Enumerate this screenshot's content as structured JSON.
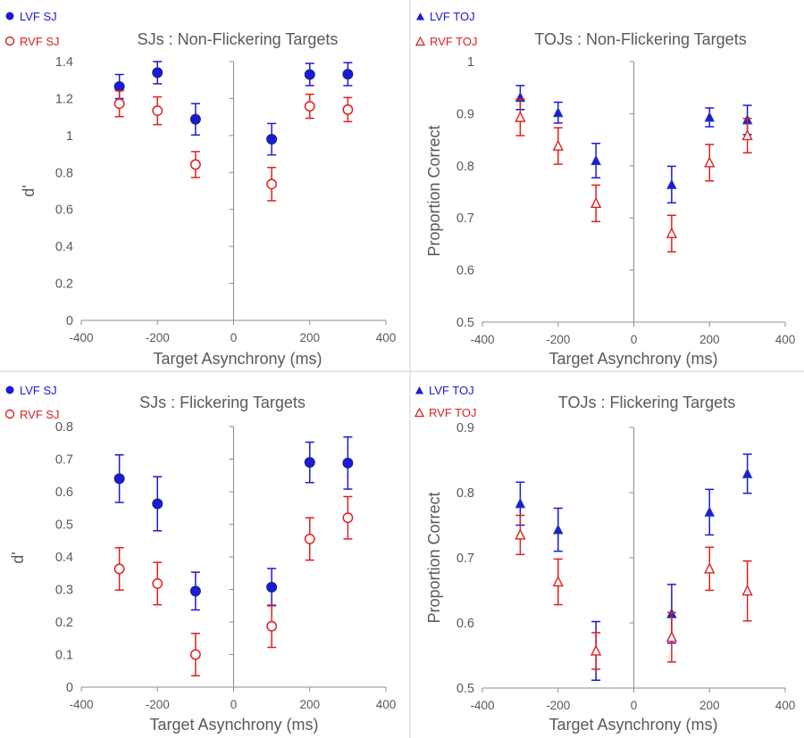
{
  "colors": {
    "lvf": "#1a1adb",
    "rvf": "#e02020",
    "axis": "#8c8c8c",
    "text": "#595959",
    "divider": "#d0d0d0"
  },
  "chart_data": [
    {
      "type": "scatter",
      "title": "SJs : Non-Flickering Targets",
      "xlabel": "Target Asynchrony (ms)",
      "ylabel": "d'",
      "xlim": [
        -400,
        400
      ],
      "ylim": [
        0,
        1.4
      ],
      "xticks": [
        "-400",
        "-200",
        "0",
        "200",
        "400"
      ],
      "yticks": [
        "0",
        "0.2",
        "0.4",
        "0.6",
        "0.8",
        "1",
        "1.2",
        "1.4"
      ],
      "legend_position": "top-left",
      "series": [
        {
          "name": "LVF SJ",
          "marker": "filled-circle",
          "x": [
            -300,
            -200,
            -100,
            100,
            200,
            300
          ],
          "y": [
            1.265,
            1.34,
            1.088,
            0.98,
            1.33,
            1.332
          ],
          "err": [
            0.065,
            0.06,
            0.085,
            0.085,
            0.06,
            0.062
          ]
        },
        {
          "name": "RVF SJ",
          "marker": "open-circle",
          "x": [
            -300,
            -200,
            -100,
            100,
            200,
            300
          ],
          "y": [
            1.172,
            1.134,
            0.843,
            0.737,
            1.158,
            1.14
          ],
          "err": [
            0.07,
            0.075,
            0.07,
            0.09,
            0.065,
            0.065
          ]
        }
      ]
    },
    {
      "type": "scatter",
      "title": "TOJs : Non-Flickering Targets",
      "xlabel": "Target Asynchrony (ms)",
      "ylabel": "Proportion Correct",
      "xlim": [
        -400,
        400
      ],
      "ylim": [
        0.5,
        1
      ],
      "xticks": [
        "-400",
        "-200",
        "0",
        "200",
        "400"
      ],
      "yticks": [
        "0.5",
        "0.6",
        "0.7",
        "0.8",
        "0.9",
        "1"
      ],
      "legend_position": "top-left",
      "series": [
        {
          "name": "LVF TOJ",
          "marker": "filled-triangle",
          "x": [
            -300,
            -200,
            -100,
            100,
            200,
            300
          ],
          "y": [
            0.931,
            0.902,
            0.81,
            0.764,
            0.893,
            0.888
          ],
          "err": [
            0.023,
            0.02,
            0.033,
            0.035,
            0.018,
            0.028
          ]
        },
        {
          "name": "RVF TOJ",
          "marker": "open-triangle",
          "x": [
            -300,
            -200,
            -100,
            100,
            200,
            300
          ],
          "y": [
            0.893,
            0.838,
            0.728,
            0.67,
            0.806,
            0.858
          ],
          "err": [
            0.035,
            0.035,
            0.035,
            0.035,
            0.035,
            0.033
          ]
        }
      ]
    },
    {
      "type": "scatter",
      "title": "SJs : Flickering Targets",
      "xlabel": "Target Asynchrony (ms)",
      "ylabel": "d'",
      "xlim": [
        -400,
        400
      ],
      "ylim": [
        0,
        0.8
      ],
      "xticks": [
        "-400",
        "-200",
        "0",
        "200",
        "400"
      ],
      "yticks": [
        "0",
        "0.1",
        "0.2",
        "0.3",
        "0.4",
        "0.5",
        "0.6",
        "0.7",
        "0.8"
      ],
      "legend_position": "top-left",
      "series": [
        {
          "name": "LVF SJ",
          "marker": "filled-circle",
          "x": [
            -300,
            -200,
            -100,
            100,
            200,
            300
          ],
          "y": [
            0.64,
            0.563,
            0.295,
            0.307,
            0.69,
            0.688
          ],
          "err": [
            0.073,
            0.083,
            0.058,
            0.057,
            0.062,
            0.08
          ]
        },
        {
          "name": "RVF SJ",
          "marker": "open-circle",
          "x": [
            -300,
            -200,
            -100,
            100,
            200,
            300
          ],
          "y": [
            0.363,
            0.318,
            0.1,
            0.187,
            0.455,
            0.52
          ],
          "err": [
            0.065,
            0.065,
            0.065,
            0.065,
            0.065,
            0.065
          ]
        }
      ]
    },
    {
      "type": "scatter",
      "title": "TOJs : Flickering Targets",
      "xlabel": "Target Asynchrony (ms)",
      "ylabel": "Proportion Correct",
      "xlim": [
        -400,
        400
      ],
      "ylim": [
        0.5,
        0.9
      ],
      "xticks": [
        "-400",
        "-200",
        "0",
        "200",
        "400"
      ],
      "yticks": [
        "0.5",
        "0.6",
        "0.7",
        "0.8",
        "0.9"
      ],
      "legend_position": "top-left",
      "series": [
        {
          "name": "LVF TOJ",
          "marker": "filled-triangle",
          "x": [
            -300,
            -200,
            -100,
            100,
            200,
            300
          ],
          "y": [
            0.783,
            0.743,
            0.557,
            0.614,
            0.77,
            0.829
          ],
          "err": [
            0.033,
            0.033,
            0.045,
            0.045,
            0.035,
            0.03
          ]
        },
        {
          "name": "RVF TOJ",
          "marker": "open-triangle",
          "x": [
            -300,
            -200,
            -100,
            100,
            200,
            300
          ],
          "y": [
            0.735,
            0.663,
            0.557,
            0.578,
            0.683,
            0.649
          ],
          "err": [
            0.03,
            0.035,
            0.028,
            0.038,
            0.033,
            0.046
          ]
        }
      ]
    }
  ]
}
